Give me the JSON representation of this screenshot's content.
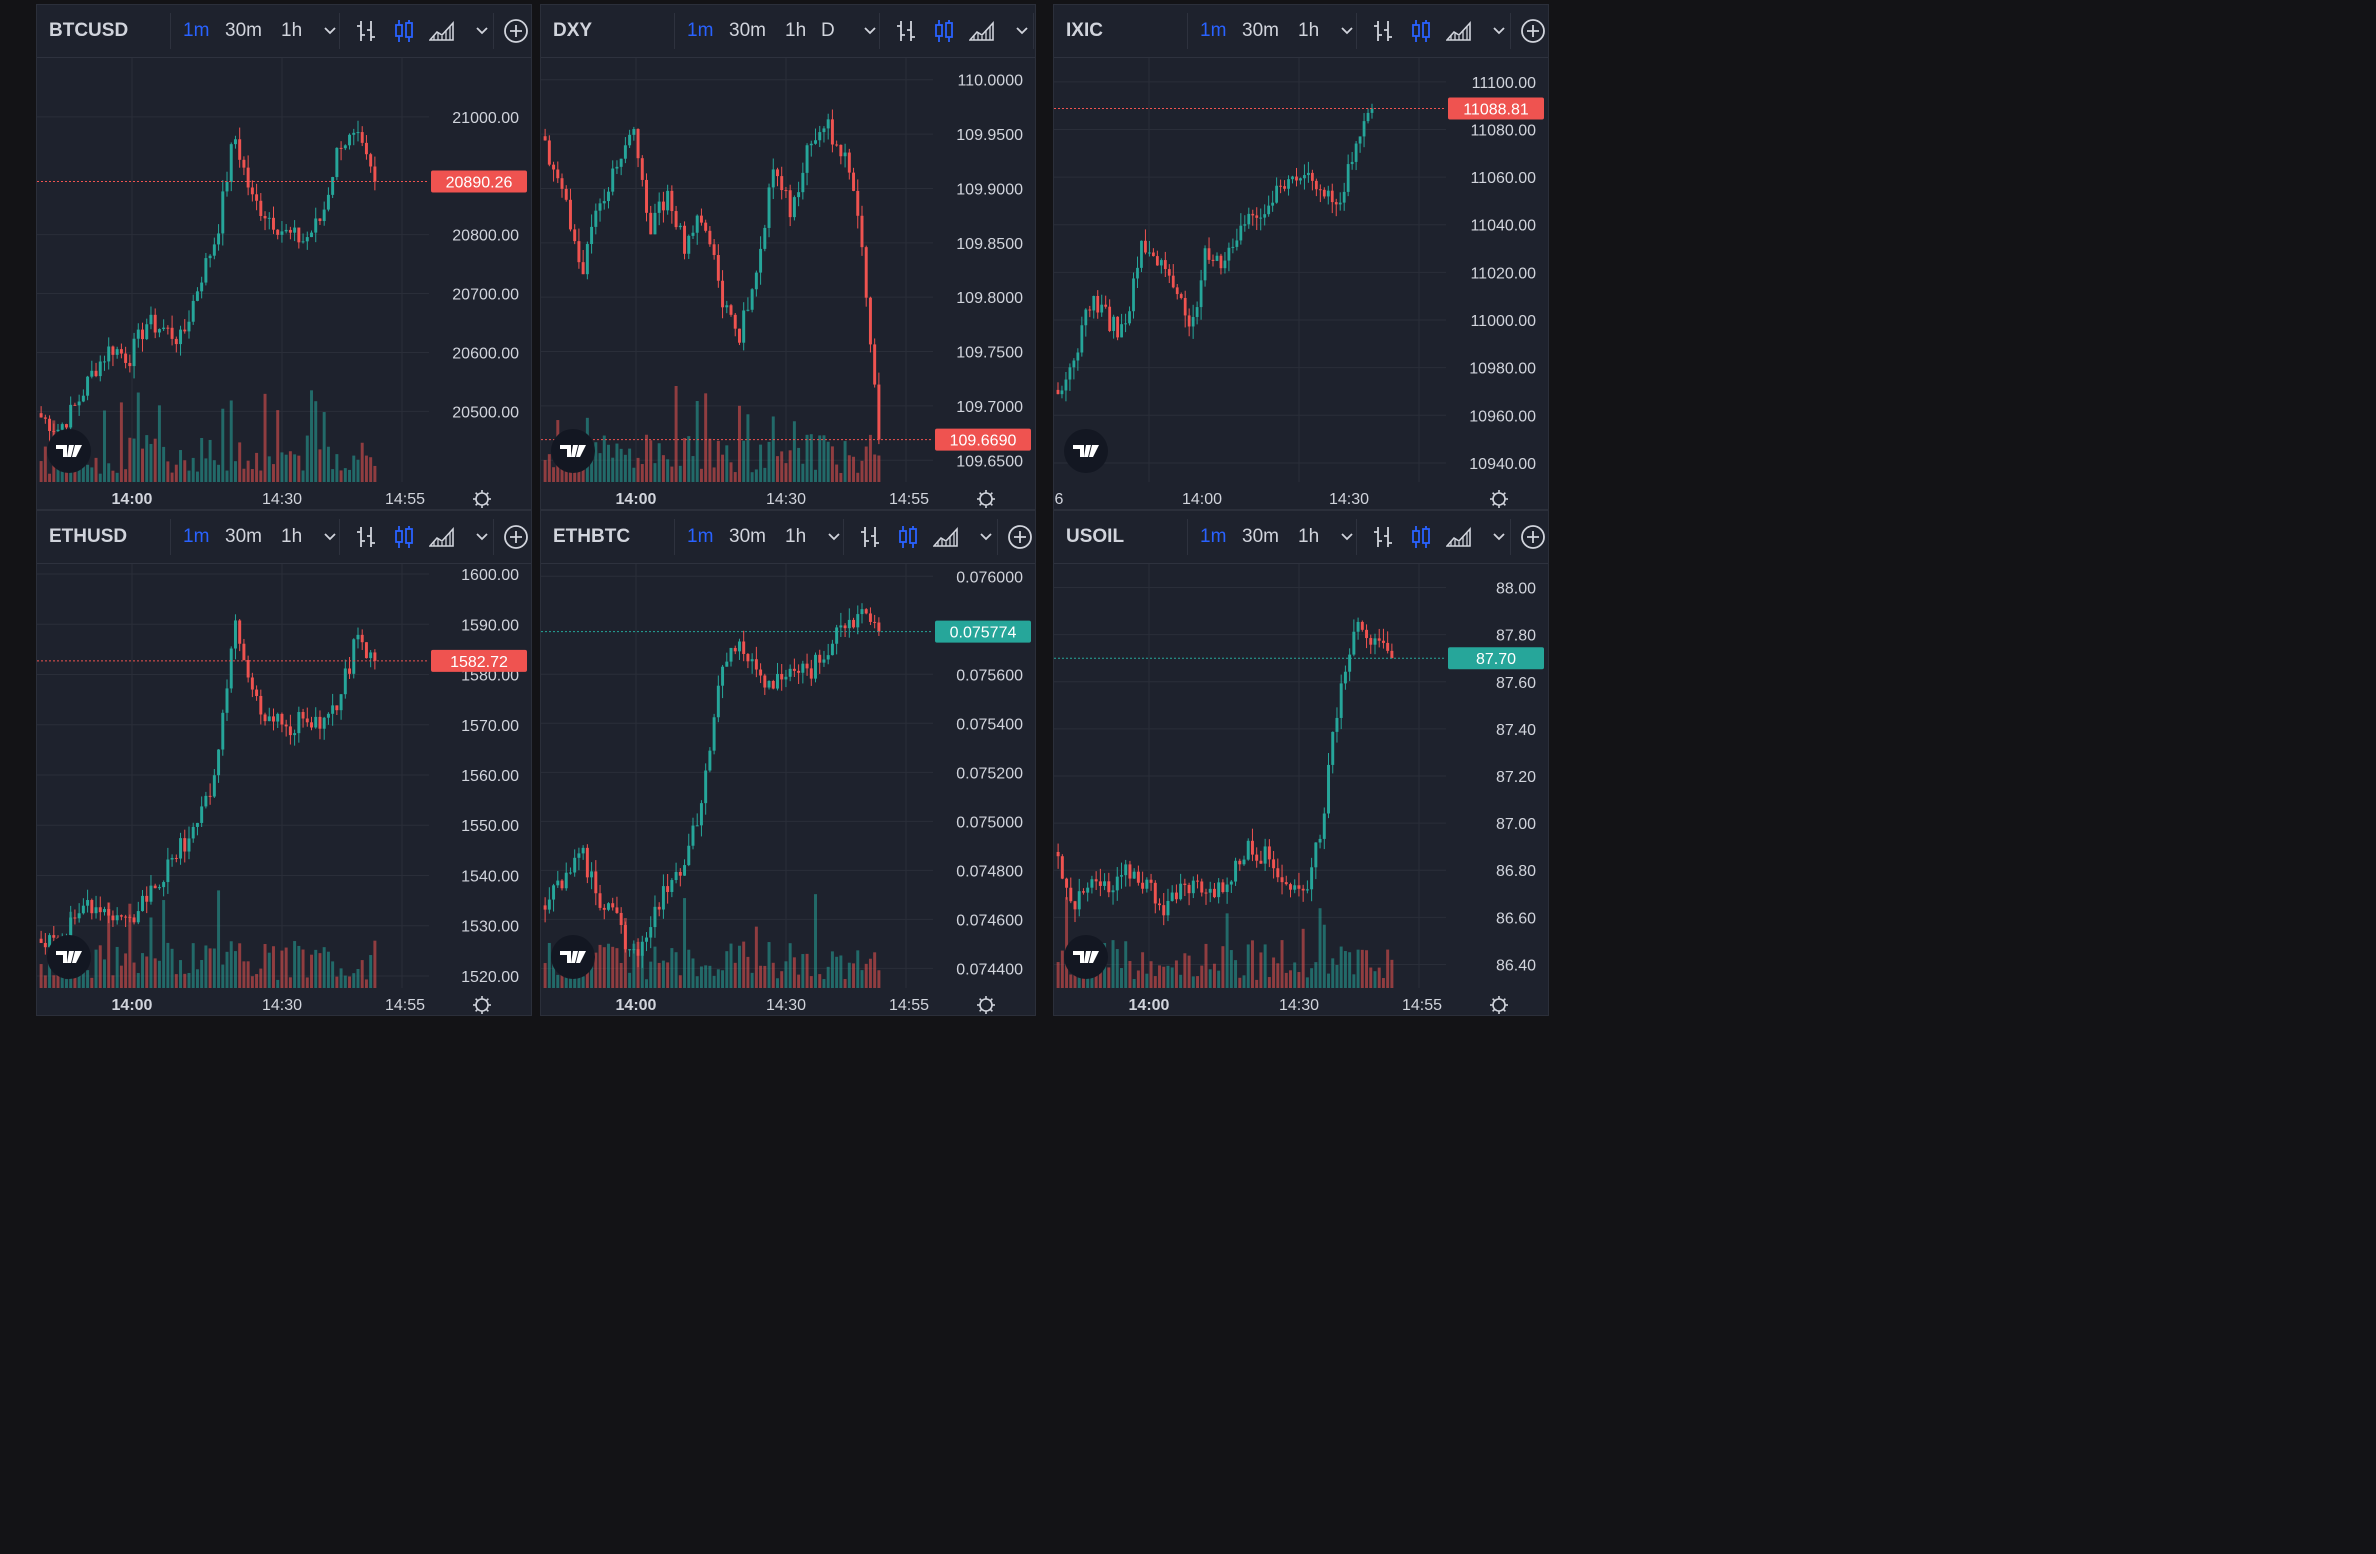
{
  "timeframes": [
    "1m",
    "30m",
    "1h"
  ],
  "colors": {
    "up": "#26a69a",
    "down": "#ef5350",
    "text": "#d1d4dc",
    "accent": "#2962ff",
    "bg": "#1e222d",
    "grid": "#2a2e39"
  },
  "icons": [
    "bar-chart-icon",
    "candles-icon",
    "area-chart-icon",
    "chevron-down-icon",
    "add-circle-icon",
    "gear-icon",
    "tradingview-logo"
  ],
  "panels": [
    {
      "symbol": "BTCUSD",
      "extra_timeframe": "",
      "price": "20890.26",
      "price_status": "down",
      "y_labels": [
        "21000.00",
        "20800.00",
        "20700.00",
        "20600.00",
        "20500.00"
      ],
      "x_labels": [
        "14:00",
        "14:30",
        "14:55"
      ],
      "chart_data": {
        "type": "candlestick",
        "symbol": "BTCUSD",
        "last": 20890.26,
        "ylim": [
          20380,
          21100
        ],
        "y_ticks": [
          20500,
          20600,
          20700,
          20800,
          21000
        ],
        "x_ticks": [
          "14:00",
          "14:30",
          "14:55"
        ],
        "trend": [
          20490,
          20470,
          20510,
          20570,
          20610,
          20590,
          20650,
          20640,
          20620,
          20720,
          20800,
          20970,
          20860,
          20830,
          20800,
          20790,
          20830,
          20960,
          20960,
          20890
        ]
      }
    },
    {
      "symbol": "DXY",
      "extra_timeframe": "D",
      "price": "109.6690",
      "price_status": "down",
      "y_labels": [
        "110.0000",
        "109.9500",
        "109.9000",
        "109.8500",
        "109.8000",
        "109.7500",
        "109.7000",
        "109.6500"
      ],
      "x_labels": [
        "14:00",
        "14:30",
        "14:55"
      ],
      "chart_data": {
        "type": "candlestick",
        "symbol": "DXY",
        "last": 109.669,
        "ylim": [
          109.63,
          110.02
        ],
        "y_ticks": [
          109.65,
          109.7,
          109.75,
          109.8,
          109.85,
          109.9,
          109.95,
          110.0
        ],
        "x_ticks": [
          "14:00",
          "14:30",
          "14:55"
        ],
        "trend": [
          109.94,
          109.9,
          109.82,
          109.88,
          109.92,
          109.95,
          109.86,
          109.9,
          109.84,
          109.88,
          109.8,
          109.76,
          109.82,
          109.92,
          109.88,
          109.94,
          109.96,
          109.93,
          109.86,
          109.669
        ]
      }
    },
    {
      "symbol": "IXIC",
      "extra_timeframe": "",
      "price": "11088.81",
      "price_status": "down",
      "y_labels": [
        "11100.00",
        "11080.00",
        "11060.00",
        "11040.00",
        "11020.00",
        "11000.00",
        "10980.00",
        "10960.00",
        "10940.00"
      ],
      "x_labels": [
        "6",
        "14:00",
        "14:30"
      ],
      "chart_data": {
        "type": "candlestick",
        "symbol": "IXIC",
        "last": 11088.81,
        "ylim": [
          10932,
          11110
        ],
        "y_ticks": [
          10940,
          10960,
          10980,
          11000,
          11020,
          11040,
          11060,
          11080,
          11100
        ],
        "x_ticks": [
          "14:00",
          "14:30"
        ],
        "trend": [
          10965,
          10985,
          11010,
          11000,
          10995,
          11030,
          11025,
          11015,
          10995,
          11030,
          11025,
          11035,
          11045,
          11050,
          11060,
          11065,
          11055,
          11045,
          11075,
          11088
        ]
      }
    },
    {
      "symbol": "ETHUSD",
      "extra_timeframe": "",
      "price": "1582.72",
      "price_status": "down",
      "y_labels": [
        "1600.00",
        "1590.00",
        "1580.00",
        "1570.00",
        "1560.00",
        "1550.00",
        "1540.00",
        "1530.00",
        "1520.00"
      ],
      "x_labels": [
        "14:00",
        "14:30",
        "14:55"
      ],
      "chart_data": {
        "type": "candlestick",
        "symbol": "ETHUSD",
        "last": 1582.72,
        "ylim": [
          1517.6,
          1602
        ],
        "y_ticks": [
          1520,
          1530,
          1540,
          1550,
          1560,
          1570,
          1580,
          1590,
          1600
        ],
        "x_ticks": [
          "14:00",
          "14:30",
          "14:55"
        ],
        "trend": [
          1528,
          1526,
          1533,
          1534,
          1530,
          1530,
          1536,
          1540,
          1546,
          1550,
          1562,
          1591,
          1575,
          1572,
          1568,
          1572,
          1570,
          1575,
          1588,
          1582
        ]
      }
    },
    {
      "symbol": "ETHBTC",
      "extra_timeframe": "",
      "price": "0.075774",
      "price_status": "up",
      "y_labels": [
        "0.076000",
        "0.075600",
        "0.075400",
        "0.075200",
        "0.075000",
        "0.074800",
        "0.074600",
        "0.074400"
      ],
      "x_labels": [
        "14:00",
        "14:30",
        "14:55"
      ],
      "chart_data": {
        "type": "candlestick",
        "symbol": "ETHBTC",
        "last": 0.075774,
        "ylim": [
          0.07432,
          0.07605
        ],
        "y_ticks": [
          0.0744,
          0.0746,
          0.0748,
          0.075,
          0.0752,
          0.0754,
          0.0756,
          0.076
        ],
        "x_ticks": [
          "14:00",
          "14:30",
          "14:55"
        ],
        "trend": [
          0.07465,
          0.07475,
          0.07488,
          0.0747,
          0.0746,
          0.07445,
          0.0746,
          0.07475,
          0.07485,
          0.0751,
          0.0756,
          0.07575,
          0.0756,
          0.07555,
          0.07565,
          0.0756,
          0.0757,
          0.0758,
          0.07585,
          0.075774
        ]
      }
    },
    {
      "symbol": "USOIL",
      "extra_timeframe": "",
      "price": "87.70",
      "price_status": "up",
      "y_labels": [
        "88.00",
        "87.80",
        "87.60",
        "87.40",
        "87.20",
        "87.00",
        "86.80",
        "86.60",
        "86.40"
      ],
      "x_labels": [
        "14:00",
        "14:30",
        "14:55"
      ],
      "chart_data": {
        "type": "candlestick",
        "symbol": "USOIL",
        "last": 87.7,
        "ylim": [
          86.3,
          88.1
        ],
        "y_ticks": [
          86.4,
          86.6,
          86.8,
          87.0,
          87.2,
          87.4,
          87.6,
          87.8,
          88.0
        ],
        "x_ticks": [
          "14:00",
          "14:30",
          "14:55"
        ],
        "trend": [
          86.85,
          86.65,
          86.75,
          86.7,
          86.8,
          86.75,
          86.65,
          86.7,
          86.75,
          86.7,
          86.8,
          86.9,
          86.85,
          86.75,
          86.7,
          87.0,
          87.55,
          87.9,
          87.75,
          87.7
        ]
      }
    }
  ]
}
